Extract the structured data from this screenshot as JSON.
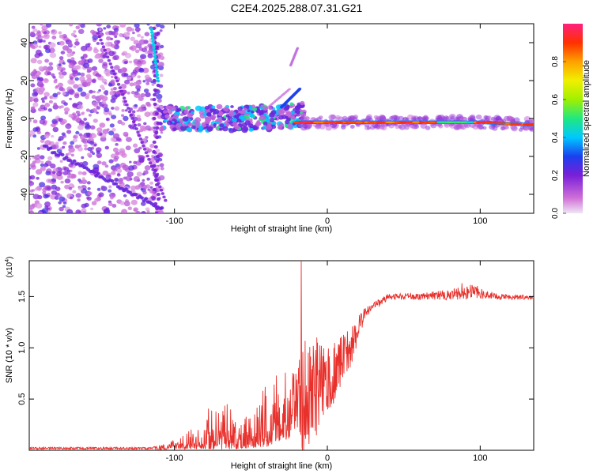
{
  "title": "C2E4.2025.288.07.31.G21",
  "chart_data": [
    {
      "type": "heatmap",
      "xlabel": "Height of straight line (km)",
      "ylabel": "Frequency (Hz)",
      "xlim": [
        -195,
        135
      ],
      "ylim": [
        -50,
        50
      ],
      "xticks": [
        -100,
        0,
        100
      ],
      "yticks": [
        -40,
        -20,
        0,
        20,
        40
      ],
      "xtick_labels": [
        "-100",
        "0",
        "100"
      ],
      "ytick_labels": [
        "-40",
        "-20",
        "0",
        "20",
        "40"
      ],
      "colorbar": {
        "label": "Normalized spectral amplitude",
        "range": [
          0,
          1
        ],
        "ticks": [
          0.0,
          0.2,
          0.4,
          0.6,
          0.8
        ],
        "tick_labels": [
          "0.0",
          "0.2",
          "0.4",
          "0.6",
          "0.8"
        ]
      },
      "features": [
        {
          "name": "noise region",
          "x_range": [
            -195,
            -108
          ],
          "y_range": [
            -50,
            50
          ],
          "amplitude": 0.15
        },
        {
          "name": "scattered signal",
          "x_range": [
            -110,
            -15
          ],
          "y_center": 0,
          "y_spread": 8,
          "amplitude": 0.4
        },
        {
          "name": "stable tone",
          "x_range": [
            -20,
            135
          ],
          "y_center": -2,
          "amplitude": 0.95
        }
      ]
    },
    {
      "type": "line",
      "xlabel": "Height of straight line (km)",
      "ylabel": "SNR (10 * v/v)",
      "scale_label": "(x10",
      "scale_exp": "4",
      "scale_close": ")",
      "xlim": [
        -195,
        135
      ],
      "ylim": [
        0,
        1.85
      ],
      "xticks": [
        -100,
        0,
        100
      ],
      "yticks": [
        0.5,
        1.0,
        1.5
      ],
      "xtick_labels": [
        "-100",
        "0",
        "100"
      ],
      "ytick_labels": [
        "0.5",
        "1.0",
        "1.5"
      ],
      "series": [
        {
          "name": "SNR",
          "color": "#e8312c",
          "envelope": {
            "x": [
              -195,
              -115,
              -100,
              -80,
              -60,
              -40,
              -25,
              -15,
              -5,
              5,
              15,
              25,
              40,
              60,
              80,
              95,
              110,
              135
            ],
            "base": [
              0.02,
              0.02,
              0.03,
              0.06,
              0.08,
              0.12,
              0.22,
              0.55,
              0.65,
              0.75,
              1.0,
              1.35,
              1.5,
              1.5,
              1.52,
              1.55,
              1.5,
              1.49
            ],
            "amp": [
              0.01,
              0.01,
              0.06,
              0.22,
              0.28,
              0.35,
              0.5,
              0.6,
              0.45,
              0.3,
              0.2,
              0.05,
              0.03,
              0.03,
              0.05,
              0.08,
              0.03,
              0.02
            ]
          },
          "spikes": [
            {
              "x": -17,
              "y": 1.85
            },
            {
              "x": 88,
              "y": 1.63
            }
          ]
        }
      ]
    }
  ]
}
